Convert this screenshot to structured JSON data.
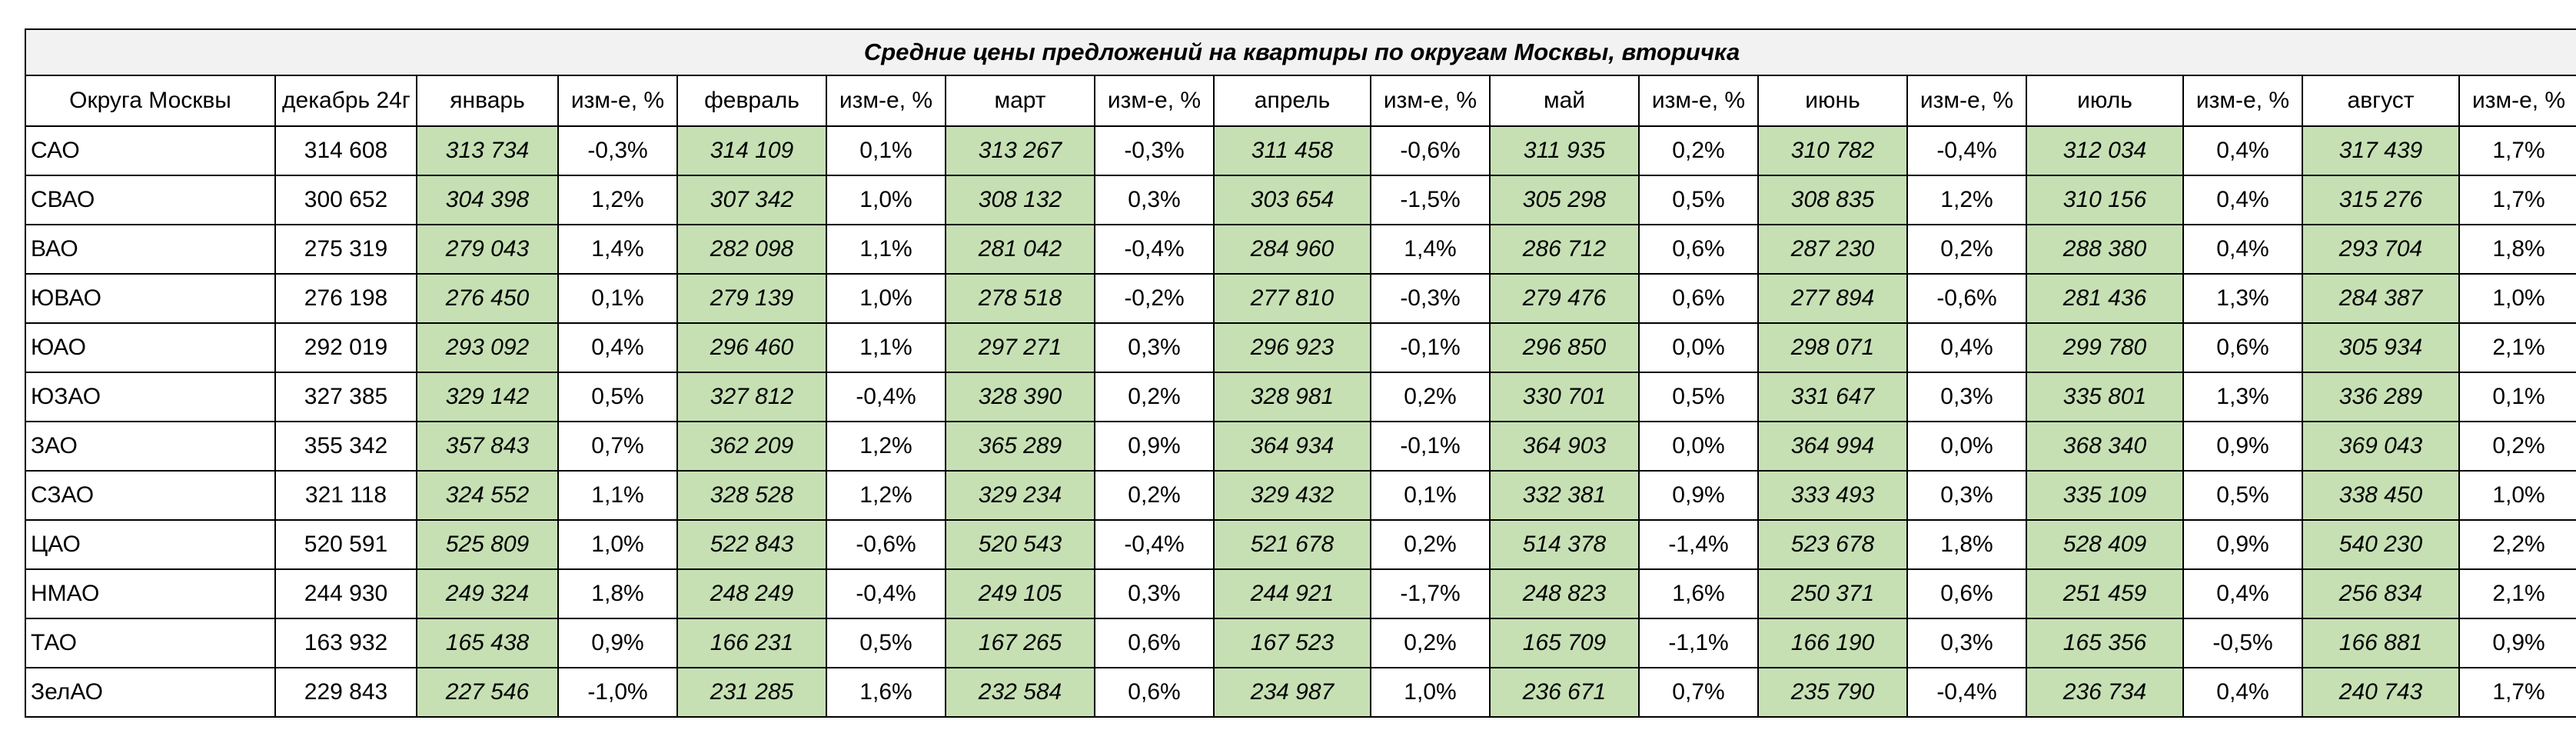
{
  "title": "Средние цены предложений на  квартиры по округам Москвы, вторичка",
  "headers": [
    "Округа Москвы",
    "декабрь 24г",
    "январь",
    "изм-е, %",
    "февраль",
    "изм-е, %",
    "март",
    "изм-е, %",
    "апрель",
    "изм-е, %",
    "май",
    "изм-е, %",
    "июнь",
    "изм-е, %",
    "июль",
    "изм-е, %",
    "август",
    "изм-е, %"
  ],
  "rows": [
    {
      "name": "САО",
      "cells": [
        "314 608",
        "313 734",
        "-0,3%",
        "314 109",
        "0,1%",
        "313 267",
        "-0,3%",
        "311 458",
        "-0,6%",
        "311 935",
        "0,2%",
        "310 782",
        "-0,4%",
        "312 034",
        "0,4%",
        "317 439",
        "1,7%"
      ]
    },
    {
      "name": "СВАО",
      "cells": [
        "300 652",
        "304 398",
        "1,2%",
        "307 342",
        "1,0%",
        "308 132",
        "0,3%",
        "303 654",
        "-1,5%",
        "305 298",
        "0,5%",
        "308 835",
        "1,2%",
        "310 156",
        "0,4%",
        "315 276",
        "1,7%"
      ]
    },
    {
      "name": "ВАО",
      "cells": [
        "275 319",
        "279 043",
        "1,4%",
        "282 098",
        "1,1%",
        "281 042",
        "-0,4%",
        "284 960",
        "1,4%",
        "286 712",
        "0,6%",
        "287 230",
        "0,2%",
        "288 380",
        "0,4%",
        "293 704",
        "1,8%"
      ]
    },
    {
      "name": "ЮВАО",
      "cells": [
        "276 198",
        "276 450",
        "0,1%",
        "279 139",
        "1,0%",
        "278 518",
        "-0,2%",
        "277 810",
        "-0,3%",
        "279 476",
        "0,6%",
        "277 894",
        "-0,6%",
        "281 436",
        "1,3%",
        "284 387",
        "1,0%"
      ]
    },
    {
      "name": "ЮАО",
      "cells": [
        "292 019",
        "293 092",
        "0,4%",
        "296 460",
        "1,1%",
        "297 271",
        "0,3%",
        "296 923",
        "-0,1%",
        "296 850",
        "0,0%",
        "298 071",
        "0,4%",
        "299 780",
        "0,6%",
        "305 934",
        "2,1%"
      ]
    },
    {
      "name": "ЮЗАО",
      "cells": [
        "327 385",
        "329 142",
        "0,5%",
        "327 812",
        "-0,4%",
        "328 390",
        "0,2%",
        "328 981",
        "0,2%",
        "330 701",
        "0,5%",
        "331 647",
        "0,3%",
        "335 801",
        "1,3%",
        "336 289",
        "0,1%"
      ]
    },
    {
      "name": "ЗАО",
      "cells": [
        "355 342",
        "357 843",
        "0,7%",
        "362 209",
        "1,2%",
        "365 289",
        "0,9%",
        "364 934",
        "-0,1%",
        "364 903",
        "0,0%",
        "364 994",
        "0,0%",
        "368 340",
        "0,9%",
        "369 043",
        "0,2%"
      ]
    },
    {
      "name": "СЗАО",
      "cells": [
        "321 118",
        "324 552",
        "1,1%",
        "328 528",
        "1,2%",
        "329 234",
        "0,2%",
        "329 432",
        "0,1%",
        "332 381",
        "0,9%",
        "333 493",
        "0,3%",
        "335 109",
        "0,5%",
        "338 450",
        "1,0%"
      ]
    },
    {
      "name": "ЦАО",
      "cells": [
        "520 591",
        "525 809",
        "1,0%",
        "522 843",
        "-0,6%",
        "520 543",
        "-0,4%",
        "521 678",
        "0,2%",
        "514 378",
        "-1,4%",
        "523 678",
        "1,8%",
        "528 409",
        "0,9%",
        "540 230",
        "2,2%"
      ]
    },
    {
      "name": "НМАО",
      "cells": [
        "244 930",
        "249 324",
        "1,8%",
        "248 249",
        "-0,4%",
        "249 105",
        "0,3%",
        "244 921",
        "-1,7%",
        "248 823",
        "1,6%",
        "250 371",
        "0,6%",
        "251 459",
        "0,4%",
        "256 834",
        "2,1%"
      ]
    },
    {
      "name": "ТАО",
      "cells": [
        "163 932",
        "165 438",
        "0,9%",
        "166 231",
        "0,5%",
        "167 265",
        "0,6%",
        "167 523",
        "0,2%",
        "165 709",
        "-1,1%",
        "166 190",
        "0,3%",
        "165 356",
        "-0,5%",
        "166 881",
        "0,9%"
      ]
    },
    {
      "name": "ЗелАО",
      "cells": [
        "229 843",
        "227 546",
        "-1,0%",
        "231 285",
        "1,6%",
        "232 584",
        "0,6%",
        "234 987",
        "1,0%",
        "236 671",
        "0,7%",
        "235 790",
        "-0,4%",
        "236 734",
        "0,4%",
        "240 743",
        "1,7%"
      ]
    }
  ],
  "highlight": {
    "negative": [
      "0,0%"
    ],
    "positive_exceptions": [
      "0,0%"
    ],
    "neutral_green_cells": [
      [
        "ЗАО",
        11
      ]
    ]
  },
  "colors": {
    "positive": "#c6e0b4",
    "negative": "#f4b183",
    "title_bg": "#f2f2f2"
  }
}
